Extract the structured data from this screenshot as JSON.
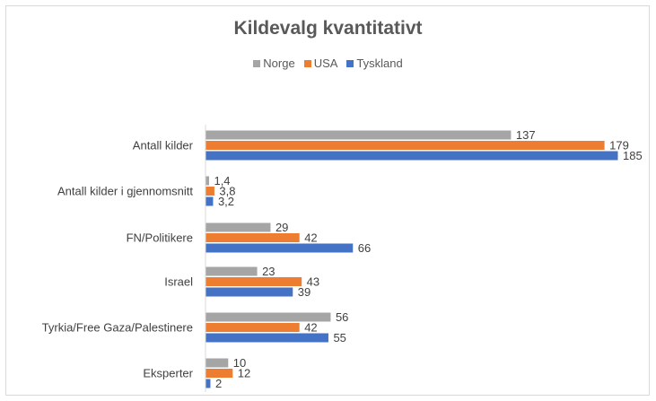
{
  "chart_data": {
    "type": "bar",
    "orientation": "horizontal",
    "title": "Kildevalg kvantitativt",
    "xlabel": "",
    "ylabel": "",
    "xlim": [
      0,
      185
    ],
    "legend_position": "top-center",
    "grid": false,
    "categories": [
      "Antall kilder",
      "Antall kilder i gjennomsnitt",
      "FN/Politikere",
      "Israel",
      "Tyrkia/Free Gaza/Palestinere",
      "Eksperter"
    ],
    "series": [
      {
        "name": "Norge",
        "color": "#a5a5a5",
        "values": [
          137,
          1.4,
          29,
          23,
          56,
          10
        ],
        "labels": [
          "137",
          "1,4",
          "29",
          "23",
          "56",
          "10"
        ]
      },
      {
        "name": "USA",
        "color": "#ed7d31",
        "values": [
          179,
          3.8,
          42,
          43,
          42,
          12
        ],
        "labels": [
          "179",
          "3,8",
          "42",
          "43",
          "42",
          "12"
        ]
      },
      {
        "name": "Tyskland",
        "color": "#4472c4",
        "values": [
          185,
          3.2,
          66,
          39,
          55,
          2
        ],
        "labels": [
          "185",
          "3,2",
          "66",
          "39",
          "55",
          "2"
        ]
      }
    ]
  }
}
